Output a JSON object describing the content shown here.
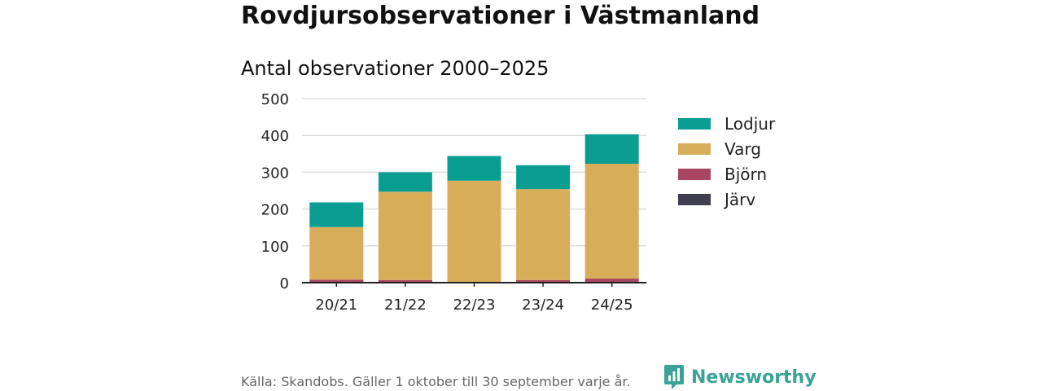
{
  "title": "Rovdjursobservationer i Västmanland",
  "subtitle": "Antal observationer 2000–2025",
  "footer": {
    "source": "Källa: Skandobs. Gäller 1 oktober till 30 september varje år.",
    "brand": "Newsworthy"
  },
  "colors": {
    "Lodjur": "#0a9e93",
    "Varg": "#d8ad5a",
    "Björn": "#a84563",
    "Järv": "#3f3f50",
    "grid": "#dddddd",
    "axis": "#222222"
  },
  "chart_data": {
    "type": "bar",
    "stacked": true,
    "categories": [
      "20/21",
      "21/22",
      "22/23",
      "23/24",
      "24/25"
    ],
    "series": [
      {
        "name": "Järv",
        "values": [
          1,
          1,
          0,
          1,
          1
        ]
      },
      {
        "name": "Björn",
        "values": [
          7,
          6,
          2,
          6,
          10
        ]
      },
      {
        "name": "Varg",
        "values": [
          143,
          240,
          275,
          247,
          312
        ]
      },
      {
        "name": "Lodjur",
        "values": [
          67,
          53,
          67,
          65,
          80
        ]
      }
    ],
    "legend_order": [
      "Lodjur",
      "Varg",
      "Björn",
      "Järv"
    ],
    "y_ticks": [
      0,
      100,
      200,
      300,
      400,
      500
    ],
    "ylim": [
      0,
      500
    ],
    "grid": true,
    "legend_position": "right"
  }
}
